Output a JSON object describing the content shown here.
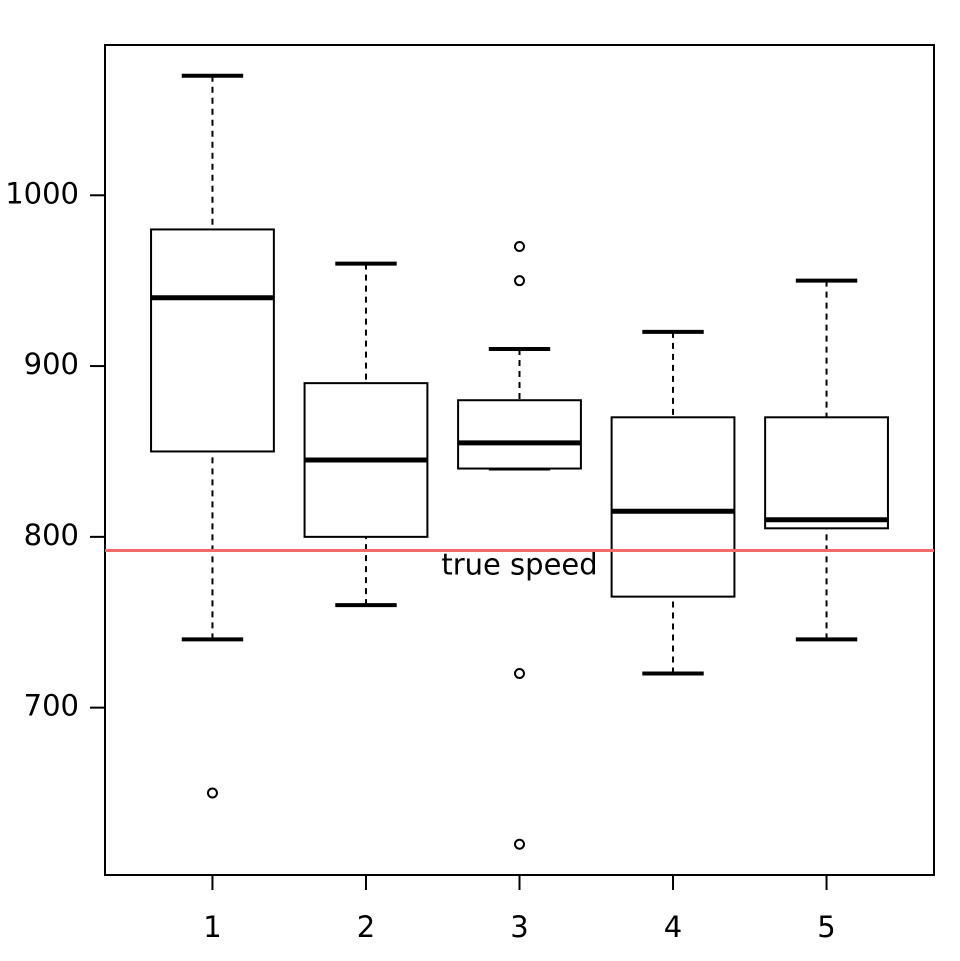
{
  "chart_data": {
    "type": "boxplot",
    "categories": [
      "1",
      "2",
      "3",
      "4",
      "5"
    ],
    "boxes": [
      {
        "whisker_low": 740,
        "q1": 850,
        "median": 940,
        "q3": 980,
        "whisker_high": 1070,
        "outliers": [
          650
        ]
      },
      {
        "whisker_low": 760,
        "q1": 800,
        "median": 845,
        "q3": 890,
        "whisker_high": 960,
        "outliers": []
      },
      {
        "whisker_low": 840,
        "q1": 840,
        "median": 855,
        "q3": 880,
        "whisker_high": 910,
        "outliers": [
          970,
          950,
          720,
          620
        ]
      },
      {
        "whisker_low": 720,
        "q1": 765,
        "median": 815,
        "q3": 870,
        "whisker_high": 920,
        "outliers": []
      },
      {
        "whisker_low": 740,
        "q1": 805,
        "median": 810,
        "q3": 870,
        "whisker_high": 950,
        "outliers": []
      }
    ],
    "color": "#000000",
    "reference_line": {
      "value": 792,
      "label": "true speed",
      "color": "#f26a6a"
    },
    "ylim": [
      602,
      1088
    ],
    "yticks": [
      700,
      800,
      900,
      1000
    ]
  }
}
